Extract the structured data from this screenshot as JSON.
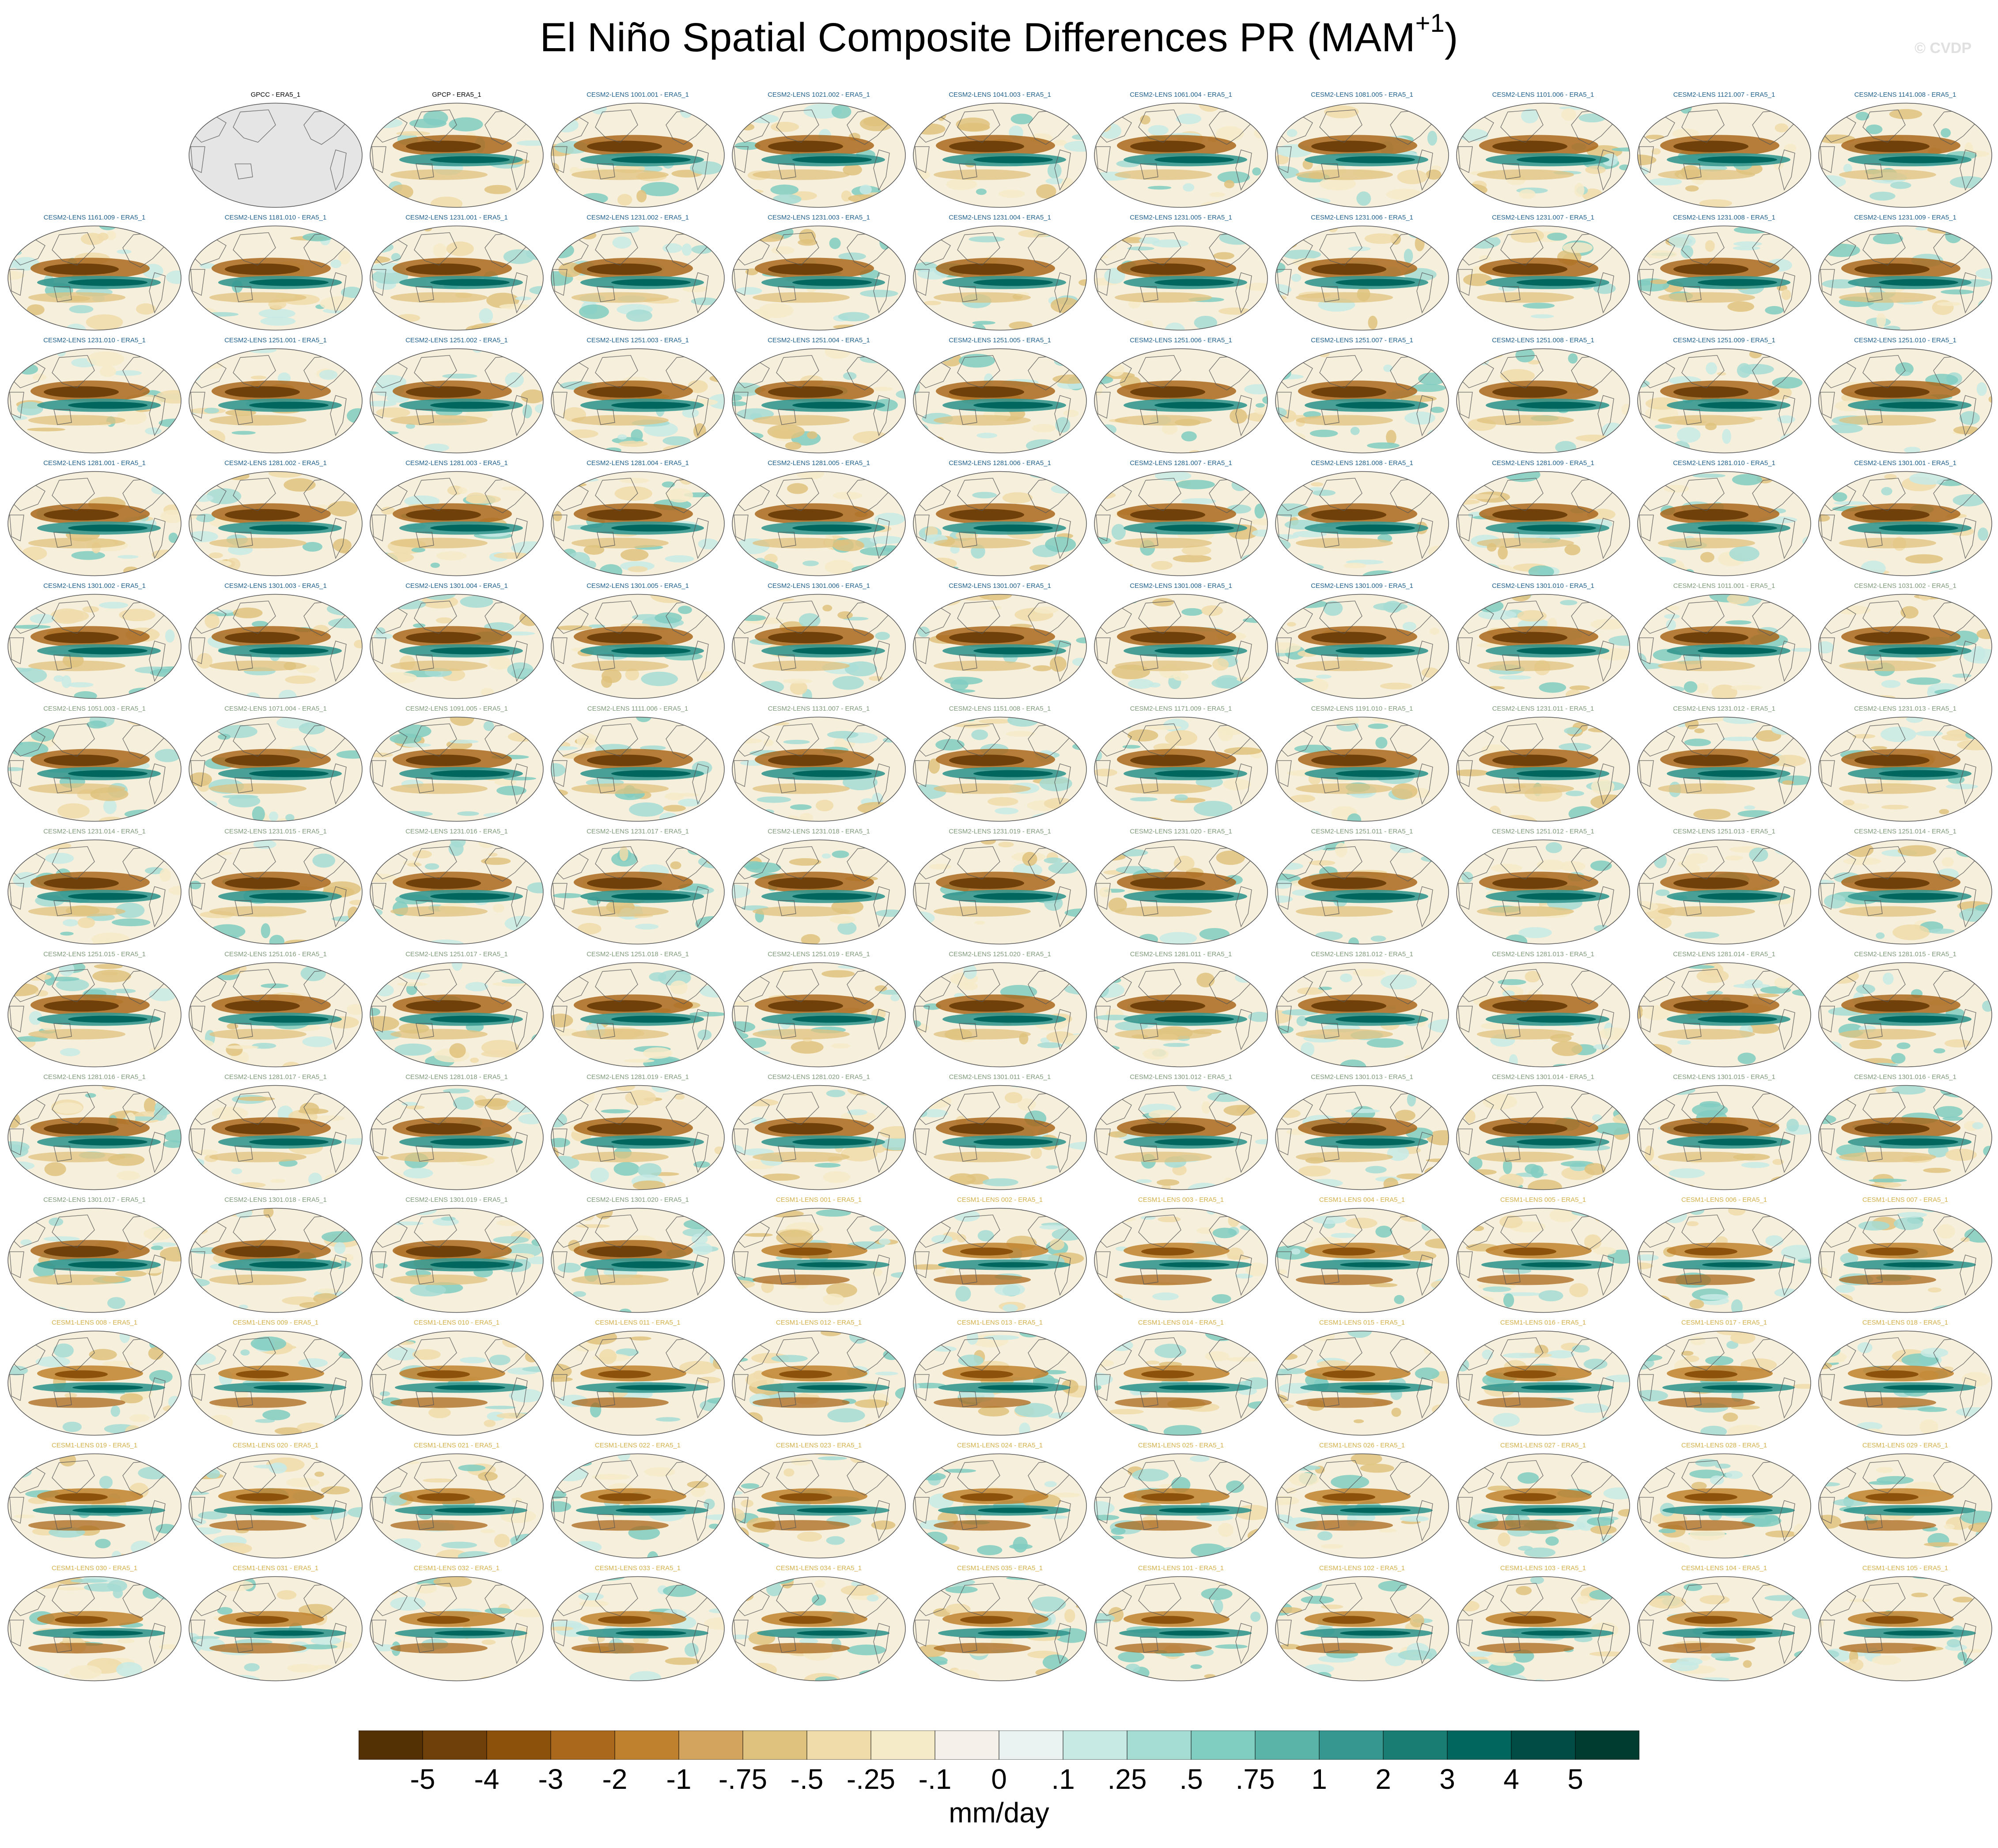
{
  "title": "El Niño Spatial Composite Differences PR (MAM",
  "title_sup": "+1",
  "title_close": ")",
  "watermark": "© CVDP",
  "colors": {
    "reference_label": "#000000",
    "cesm2_label": "#1f5f8b",
    "cesm2_alt_label": "#7f9a7a",
    "cesm1_label": "#d4b04a",
    "land_fill": "#e5e5e5"
  },
  "chart_data": {
    "type": "heatmap",
    "description_type": "panel grid of global maps",
    "grid": {
      "rows": 13,
      "cols": 11,
      "first_row_empty_slots": 1
    },
    "panels": [
      {
        "label": "GPCC - ERA5_1",
        "group": "reference",
        "land_masked": true
      },
      {
        "label": "GPCP - ERA5_1",
        "group": "reference"
      },
      {
        "label": "CESM2-LENS 1001.001 - ERA5_1",
        "group": "cesm2"
      },
      {
        "label": "CESM2-LENS 1021.002 - ERA5_1",
        "group": "cesm2"
      },
      {
        "label": "CESM2-LENS 1041.003 - ERA5_1",
        "group": "cesm2"
      },
      {
        "label": "CESM2-LENS 1061.004 - ERA5_1",
        "group": "cesm2"
      },
      {
        "label": "CESM2-LENS 1081.005 - ERA5_1",
        "group": "cesm2"
      },
      {
        "label": "CESM2-LENS 1101.006 - ERA5_1",
        "group": "cesm2"
      },
      {
        "label": "CESM2-LENS 1121.007 - ERA5_1",
        "group": "cesm2"
      },
      {
        "label": "CESM2-LENS 1141.008 - ERA5_1",
        "group": "cesm2"
      },
      {
        "label": "CESM2-LENS 1161.009 - ERA5_1",
        "group": "cesm2"
      },
      {
        "label": "CESM2-LENS 1181.010 - ERA5_1",
        "group": "cesm2"
      },
      {
        "label": "CESM2-LENS 1231.001 - ERA5_1",
        "group": "cesm2"
      },
      {
        "label": "CESM2-LENS 1231.002 - ERA5_1",
        "group": "cesm2"
      },
      {
        "label": "CESM2-LENS 1231.003 - ERA5_1",
        "group": "cesm2"
      },
      {
        "label": "CESM2-LENS 1231.004 - ERA5_1",
        "group": "cesm2"
      },
      {
        "label": "CESM2-LENS 1231.005 - ERA5_1",
        "group": "cesm2"
      },
      {
        "label": "CESM2-LENS 1231.006 - ERA5_1",
        "group": "cesm2"
      },
      {
        "label": "CESM2-LENS 1231.007 - ERA5_1",
        "group": "cesm2"
      },
      {
        "label": "CESM2-LENS 1231.008 - ERA5_1",
        "group": "cesm2"
      },
      {
        "label": "CESM2-LENS 1231.009 - ERA5_1",
        "group": "cesm2"
      },
      {
        "label": "CESM2-LENS 1231.010 - ERA5_1",
        "group": "cesm2"
      },
      {
        "label": "CESM2-LENS 1251.001 - ERA5_1",
        "group": "cesm2"
      },
      {
        "label": "CESM2-LENS 1251.002 - ERA5_1",
        "group": "cesm2"
      },
      {
        "label": "CESM2-LENS 1251.003 - ERA5_1",
        "group": "cesm2"
      },
      {
        "label": "CESM2-LENS 1251.004 - ERA5_1",
        "group": "cesm2"
      },
      {
        "label": "CESM2-LENS 1251.005 - ERA5_1",
        "group": "cesm2"
      },
      {
        "label": "CESM2-LENS 1251.006 - ERA5_1",
        "group": "cesm2"
      },
      {
        "label": "CESM2-LENS 1251.007 - ERA5_1",
        "group": "cesm2"
      },
      {
        "label": "CESM2-LENS 1251.008 - ERA5_1",
        "group": "cesm2"
      },
      {
        "label": "CESM2-LENS 1251.009 - ERA5_1",
        "group": "cesm2"
      },
      {
        "label": "CESM2-LENS 1251.010 - ERA5_1",
        "group": "cesm2"
      },
      {
        "label": "CESM2-LENS 1281.001 - ERA5_1",
        "group": "cesm2"
      },
      {
        "label": "CESM2-LENS 1281.002 - ERA5_1",
        "group": "cesm2"
      },
      {
        "label": "CESM2-LENS 1281.003 - ERA5_1",
        "group": "cesm2"
      },
      {
        "label": "CESM2-LENS 1281.004 - ERA5_1",
        "group": "cesm2"
      },
      {
        "label": "CESM2-LENS 1281.005 - ERA5_1",
        "group": "cesm2"
      },
      {
        "label": "CESM2-LENS 1281.006 - ERA5_1",
        "group": "cesm2"
      },
      {
        "label": "CESM2-LENS 1281.007 - ERA5_1",
        "group": "cesm2"
      },
      {
        "label": "CESM2-LENS 1281.008 - ERA5_1",
        "group": "cesm2"
      },
      {
        "label": "CESM2-LENS 1281.009 - ERA5_1",
        "group": "cesm2"
      },
      {
        "label": "CESM2-LENS 1281.010 - ERA5_1",
        "group": "cesm2"
      },
      {
        "label": "CESM2-LENS 1301.001 - ERA5_1",
        "group": "cesm2"
      },
      {
        "label": "CESM2-LENS 1301.002 - ERA5_1",
        "group": "cesm2"
      },
      {
        "label": "CESM2-LENS 1301.003 - ERA5_1",
        "group": "cesm2"
      },
      {
        "label": "CESM2-LENS 1301.004 - ERA5_1",
        "group": "cesm2"
      },
      {
        "label": "CESM2-LENS 1301.005 - ERA5_1",
        "group": "cesm2"
      },
      {
        "label": "CESM2-LENS 1301.006 - ERA5_1",
        "group": "cesm2"
      },
      {
        "label": "CESM2-LENS 1301.007 - ERA5_1",
        "group": "cesm2"
      },
      {
        "label": "CESM2-LENS 1301.008 - ERA5_1",
        "group": "cesm2"
      },
      {
        "label": "CESM2-LENS 1301.009 - ERA5_1",
        "group": "cesm2"
      },
      {
        "label": "CESM2-LENS 1301.010 - ERA5_1",
        "group": "cesm2"
      },
      {
        "label": "CESM2-LENS 1011.001 - ERA5_1",
        "group": "cesm2_alt"
      },
      {
        "label": "CESM2-LENS 1031.002 - ERA5_1",
        "group": "cesm2_alt"
      },
      {
        "label": "CESM2-LENS 1051.003 - ERA5_1",
        "group": "cesm2_alt"
      },
      {
        "label": "CESM2-LENS 1071.004 - ERA5_1",
        "group": "cesm2_alt"
      },
      {
        "label": "CESM2-LENS 1091.005 - ERA5_1",
        "group": "cesm2_alt"
      },
      {
        "label": "CESM2-LENS 1111.006 - ERA5_1",
        "group": "cesm2_alt"
      },
      {
        "label": "CESM2-LENS 1131.007 - ERA5_1",
        "group": "cesm2_alt"
      },
      {
        "label": "CESM2-LENS 1151.008 - ERA5_1",
        "group": "cesm2_alt"
      },
      {
        "label": "CESM2-LENS 1171.009 - ERA5_1",
        "group": "cesm2_alt"
      },
      {
        "label": "CESM2-LENS 1191.010 - ERA5_1",
        "group": "cesm2_alt"
      },
      {
        "label": "CESM2-LENS 1231.011 - ERA5_1",
        "group": "cesm2_alt"
      },
      {
        "label": "CESM2-LENS 1231.012 - ERA5_1",
        "group": "cesm2_alt"
      },
      {
        "label": "CESM2-LENS 1231.013 - ERA5_1",
        "group": "cesm2_alt"
      },
      {
        "label": "CESM2-LENS 1231.014 - ERA5_1",
        "group": "cesm2_alt"
      },
      {
        "label": "CESM2-LENS 1231.015 - ERA5_1",
        "group": "cesm2_alt"
      },
      {
        "label": "CESM2-LENS 1231.016 - ERA5_1",
        "group": "cesm2_alt"
      },
      {
        "label": "CESM2-LENS 1231.017 - ERA5_1",
        "group": "cesm2_alt"
      },
      {
        "label": "CESM2-LENS 1231.018 - ERA5_1",
        "group": "cesm2_alt"
      },
      {
        "label": "CESM2-LENS 1231.019 - ERA5_1",
        "group": "cesm2_alt"
      },
      {
        "label": "CESM2-LENS 1231.020 - ERA5_1",
        "group": "cesm2_alt"
      },
      {
        "label": "CESM2-LENS 1251.011 - ERA5_1",
        "group": "cesm2_alt"
      },
      {
        "label": "CESM2-LENS 1251.012 - ERA5_1",
        "group": "cesm2_alt"
      },
      {
        "label": "CESM2-LENS 1251.013 - ERA5_1",
        "group": "cesm2_alt"
      },
      {
        "label": "CESM2-LENS 1251.014 - ERA5_1",
        "group": "cesm2_alt"
      },
      {
        "label": "CESM2-LENS 1251.015 - ERA5_1",
        "group": "cesm2_alt"
      },
      {
        "label": "CESM2-LENS 1251.016 - ERA5_1",
        "group": "cesm2_alt"
      },
      {
        "label": "CESM2-LENS 1251.017 - ERA5_1",
        "group": "cesm2_alt"
      },
      {
        "label": "CESM2-LENS 1251.018 - ERA5_1",
        "group": "cesm2_alt"
      },
      {
        "label": "CESM2-LENS 1251.019 - ERA5_1",
        "group": "cesm2_alt"
      },
      {
        "label": "CESM2-LENS 1251.020 - ERA5_1",
        "group": "cesm2_alt"
      },
      {
        "label": "CESM2-LENS 1281.011 - ERA5_1",
        "group": "cesm2_alt"
      },
      {
        "label": "CESM2-LENS 1281.012 - ERA5_1",
        "group": "cesm2_alt"
      },
      {
        "label": "CESM2-LENS 1281.013 - ERA5_1",
        "group": "cesm2_alt"
      },
      {
        "label": "CESM2-LENS 1281.014 - ERA5_1",
        "group": "cesm2_alt"
      },
      {
        "label": "CESM2-LENS 1281.015 - ERA5_1",
        "group": "cesm2_alt"
      },
      {
        "label": "CESM2-LENS 1281.016 - ERA5_1",
        "group": "cesm2_alt"
      },
      {
        "label": "CESM2-LENS 1281.017 - ERA5_1",
        "group": "cesm2_alt"
      },
      {
        "label": "CESM2-LENS 1281.018 - ERA5_1",
        "group": "cesm2_alt"
      },
      {
        "label": "CESM2-LENS 1281.019 - ERA5_1",
        "group": "cesm2_alt"
      },
      {
        "label": "CESM2-LENS 1281.020 - ERA5_1",
        "group": "cesm2_alt"
      },
      {
        "label": "CESM2-LENS 1301.011 - ERA5_1",
        "group": "cesm2_alt"
      },
      {
        "label": "CESM2-LENS 1301.012 - ERA5_1",
        "group": "cesm2_alt"
      },
      {
        "label": "CESM2-LENS 1301.013 - ERA5_1",
        "group": "cesm2_alt"
      },
      {
        "label": "CESM2-LENS 1301.014 - ERA5_1",
        "group": "cesm2_alt"
      },
      {
        "label": "CESM2-LENS 1301.015 - ERA5_1",
        "group": "cesm2_alt"
      },
      {
        "label": "CESM2-LENS 1301.016 - ERA5_1",
        "group": "cesm2_alt"
      },
      {
        "label": "CESM2-LENS 1301.017 - ERA5_1",
        "group": "cesm2_alt"
      },
      {
        "label": "CESM2-LENS 1301.018 - ERA5_1",
        "group": "cesm2_alt"
      },
      {
        "label": "CESM2-LENS 1301.019 - ERA5_1",
        "group": "cesm2_alt"
      },
      {
        "label": "CESM2-LENS 1301.020 - ERA5_1",
        "group": "cesm2_alt"
      },
      {
        "label": "CESM1-LENS 001 - ERA5_1",
        "group": "cesm1"
      },
      {
        "label": "CESM1-LENS 002 - ERA5_1",
        "group": "cesm1"
      },
      {
        "label": "CESM1-LENS 003 - ERA5_1",
        "group": "cesm1"
      },
      {
        "label": "CESM1-LENS 004 - ERA5_1",
        "group": "cesm1"
      },
      {
        "label": "CESM1-LENS 005 - ERA5_1",
        "group": "cesm1"
      },
      {
        "label": "CESM1-LENS 006 - ERA5_1",
        "group": "cesm1"
      },
      {
        "label": "CESM1-LENS 007 - ERA5_1",
        "group": "cesm1"
      },
      {
        "label": "CESM1-LENS 008 - ERA5_1",
        "group": "cesm1"
      },
      {
        "label": "CESM1-LENS 009 - ERA5_1",
        "group": "cesm1"
      },
      {
        "label": "CESM1-LENS 010 - ERA5_1",
        "group": "cesm1"
      },
      {
        "label": "CESM1-LENS 011 - ERA5_1",
        "group": "cesm1"
      },
      {
        "label": "CESM1-LENS 012 - ERA5_1",
        "group": "cesm1"
      },
      {
        "label": "CESM1-LENS 013 - ERA5_1",
        "group": "cesm1"
      },
      {
        "label": "CESM1-LENS 014 - ERA5_1",
        "group": "cesm1"
      },
      {
        "label": "CESM1-LENS 015 - ERA5_1",
        "group": "cesm1"
      },
      {
        "label": "CESM1-LENS 016 - ERA5_1",
        "group": "cesm1"
      },
      {
        "label": "CESM1-LENS 017 - ERA5_1",
        "group": "cesm1"
      },
      {
        "label": "CESM1-LENS 018 - ERA5_1",
        "group": "cesm1"
      },
      {
        "label": "CESM1-LENS 019 - ERA5_1",
        "group": "cesm1"
      },
      {
        "label": "CESM1-LENS 020 - ERA5_1",
        "group": "cesm1"
      },
      {
        "label": "CESM1-LENS 021 - ERA5_1",
        "group": "cesm1"
      },
      {
        "label": "CESM1-LENS 022 - ERA5_1",
        "group": "cesm1"
      },
      {
        "label": "CESM1-LENS 023 - ERA5_1",
        "group": "cesm1"
      },
      {
        "label": "CESM1-LENS 024 - ERA5_1",
        "group": "cesm1"
      },
      {
        "label": "CESM1-LENS 025 - ERA5_1",
        "group": "cesm1"
      },
      {
        "label": "CESM1-LENS 026 - ERA5_1",
        "group": "cesm1"
      },
      {
        "label": "CESM1-LENS 027 - ERA5_1",
        "group": "cesm1"
      },
      {
        "label": "CESM1-LENS 028 - ERA5_1",
        "group": "cesm1"
      },
      {
        "label": "CESM1-LENS 029 - ERA5_1",
        "group": "cesm1"
      },
      {
        "label": "CESM1-LENS 030 - ERA5_1",
        "group": "cesm1"
      },
      {
        "label": "CESM1-LENS 031 - ERA5_1",
        "group": "cesm1"
      },
      {
        "label": "CESM1-LENS 032 - ERA5_1",
        "group": "cesm1"
      },
      {
        "label": "CESM1-LENS 033 - ERA5_1",
        "group": "cesm1"
      },
      {
        "label": "CESM1-LENS 034 - ERA5_1",
        "group": "cesm1"
      },
      {
        "label": "CESM1-LENS 035 - ERA5_1",
        "group": "cesm1"
      },
      {
        "label": "CESM1-LENS 101 - ERA5_1",
        "group": "cesm1"
      },
      {
        "label": "CESM1-LENS 102 - ERA5_1",
        "group": "cesm1"
      },
      {
        "label": "CESM1-LENS 103 - ERA5_1",
        "group": "cesm1"
      },
      {
        "label": "CESM1-LENS 104 - ERA5_1",
        "group": "cesm1"
      },
      {
        "label": "CESM1-LENS 105 - ERA5_1",
        "group": "cesm1"
      }
    ],
    "colorbar": {
      "unit": "mm/day",
      "tick_labels": [
        "-5",
        "-4",
        "-3",
        "-2",
        "-1",
        "-.75",
        "-.5",
        "-.25",
        "-.1",
        "0",
        ".1",
        ".25",
        ".5",
        ".75",
        "1",
        "2",
        "3",
        "4",
        "5"
      ],
      "colors": [
        "#543005",
        "#70400a",
        "#8c510a",
        "#a9681c",
        "#bf812d",
        "#d3a45e",
        "#dfc27d",
        "#f0dcaa",
        "#f6ebc8",
        "#f5f1ea",
        "#eaf3f2",
        "#c7eae5",
        "#a5dcd3",
        "#80cdc1",
        "#5ab4a7",
        "#35978f",
        "#1a7d73",
        "#01665e",
        "#014d45",
        "#003c30"
      ]
    }
  }
}
